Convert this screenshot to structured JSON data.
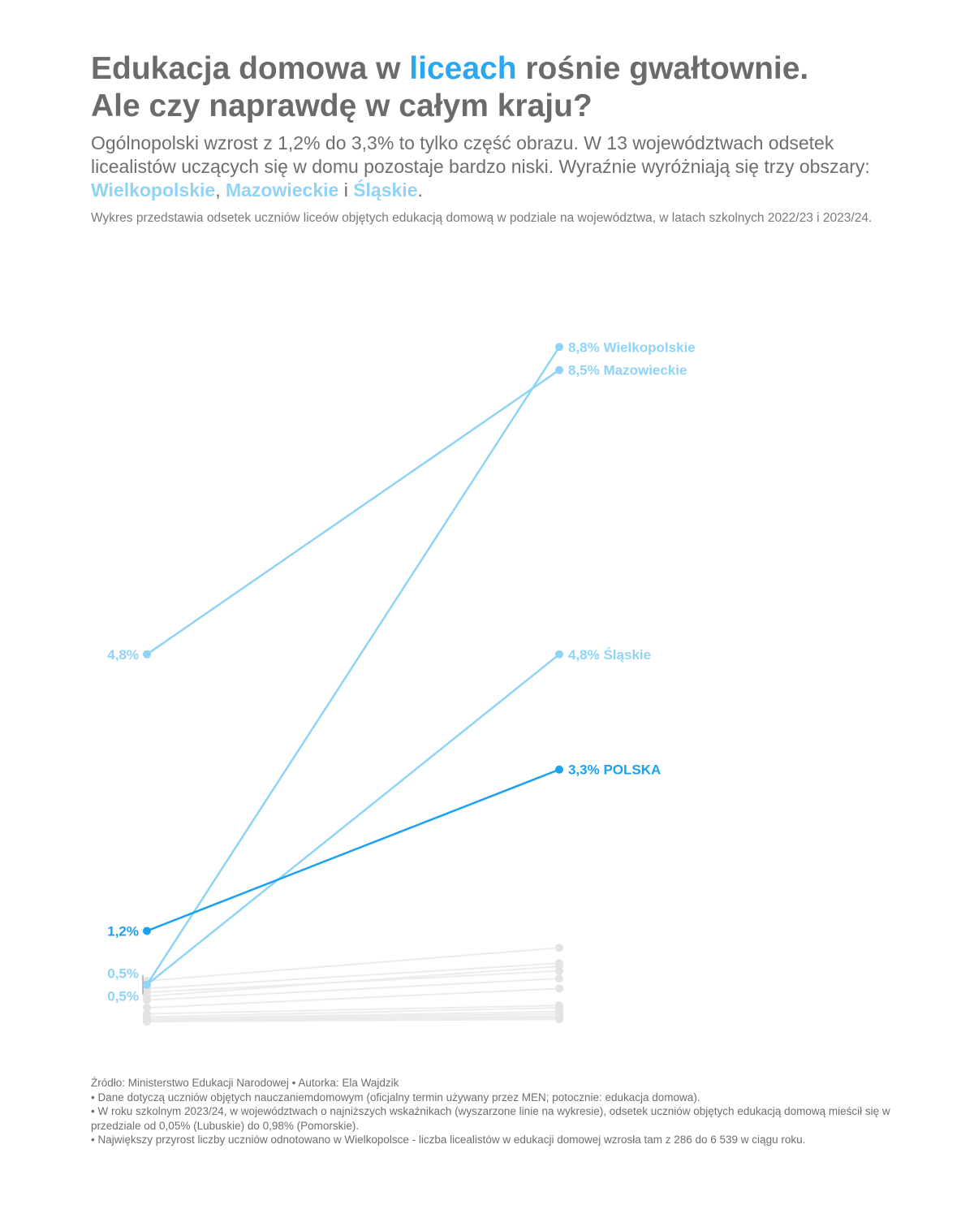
{
  "header": {
    "title_part1": "Edukacja domowa w ",
    "title_accent": "liceach",
    "title_part2": " rośnie gwałtownie.",
    "title_line2": "Ale czy naprawdę w całym kraju?",
    "subtitle_text": "Ogólnopolski wzrost z 1,2% do 3,3% to tylko część obrazu. W 13 województwach odsetek licealistów uczących się w domu pozostaje bardzo niski. Wyraźnie wyróżniają się trzy obszary: ",
    "subtitle_hl1": "Wielkopolskie",
    "subtitle_sep1": ", ",
    "subtitle_hl2": "Mazowieckie",
    "subtitle_sep2": " i ",
    "subtitle_hl3": "Śląskie",
    "subtitle_end": ".",
    "description": "Wykres przedstawia odsetek uczniów liceów objętych edukacją domową w podziale na województwa, w latach szkolnych 2022/23 i 2023/24."
  },
  "chart_data": {
    "type": "slope",
    "x": [
      "2022/23",
      "2023/24"
    ],
    "ylim": [
      0,
      9.3
    ],
    "series": [
      {
        "name": "",
        "values": [
          0.55,
          0.98
        ],
        "highlight": false
      },
      {
        "name": "",
        "values": [
          0.45,
          0.78
        ],
        "highlight": false
      },
      {
        "name": "",
        "values": [
          0.35,
          0.74
        ],
        "highlight": false
      },
      {
        "name": "",
        "values": [
          0.4,
          0.68
        ],
        "highlight": false
      },
      {
        "name": "",
        "values": [
          0.3,
          0.58
        ],
        "highlight": false
      },
      {
        "name": "",
        "values": [
          0.2,
          0.45
        ],
        "highlight": false
      },
      {
        "name": "",
        "values": [
          0.12,
          0.23
        ],
        "highlight": false
      },
      {
        "name": "",
        "values": [
          0.08,
          0.2
        ],
        "highlight": false
      },
      {
        "name": "",
        "values": [
          0.06,
          0.15
        ],
        "highlight": false
      },
      {
        "name": "",
        "values": [
          0.05,
          0.12
        ],
        "highlight": false
      },
      {
        "name": "",
        "values": [
          0.04,
          0.09
        ],
        "highlight": false
      },
      {
        "name": "",
        "values": [
          0.03,
          0.07
        ],
        "highlight": false
      },
      {
        "name": "",
        "values": [
          0.02,
          0.05
        ],
        "highlight": false
      },
      {
        "name": "Mazowieckie",
        "values": [
          4.8,
          8.5
        ],
        "highlight": true,
        "color": "#8fd3f6",
        "start_label": "4,8%",
        "end_label": "8,5% Mazowieckie"
      },
      {
        "name": "Wielkopolskie",
        "values": [
          0.5,
          8.8
        ],
        "highlight": true,
        "color": "#8fd3f6",
        "end_label": "8,8% Wielkopolskie"
      },
      {
        "name": "Śląskie",
        "values": [
          0.5,
          4.8
        ],
        "highlight": true,
        "color": "#8fd3f6",
        "end_label": "4,8% Śląskie"
      },
      {
        "name": "POLSKA",
        "values": [
          1.2,
          3.3
        ],
        "highlight": true,
        "color": "#1aa1f0",
        "start_label": "1,2%",
        "end_label": "3,3% POLSKA",
        "bold": true
      }
    ],
    "start_stack_labels": [
      "0,5%",
      "0,5%"
    ]
  },
  "colors": {
    "light_blue": "#8fd3f6",
    "accent_blue": "#1aa1f0",
    "gray_line": "#ececec",
    "gray_dot": "#e3e3e3"
  },
  "footer": {
    "line1": "Źródło: Ministerstwo Edukacji Narodowej • Autorka: Ela Wajdzik",
    "line2": "• Dane dotyczą uczniów objętych nauczaniemdomowym (oficjalny termin używany przez MEN; potocznie: edukacja domowa).",
    "line3": "• W roku szkolnym 2023/24, w województwach o najniższych wskaźnikach (wyszarzone linie na wykresie), odsetek uczniów objętych edukacją domową mieścił się w przedziale od 0,05% (Lubuskie) do 0,98% (Pomorskie).",
    "line4": "• Największy przyrost liczby uczniów odnotowano w Wielkopolsce - liczba licealistów w edukacji domowej wzrosła tam z 286 do 6 539 w ciągu roku."
  }
}
